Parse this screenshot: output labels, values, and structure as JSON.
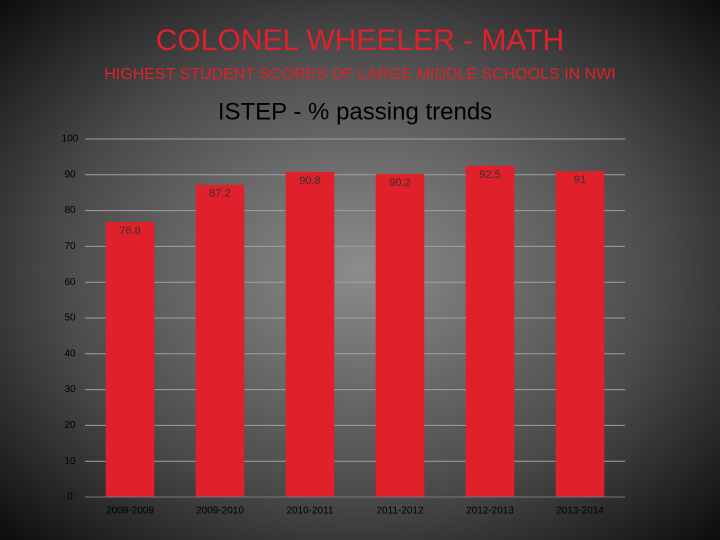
{
  "header": {
    "title": "COLONEL WHEELER - MATH",
    "subtitle": "HIGHEST STUDENT SCORES OF LARGE MIDDLE SCHOOLS IN NWI"
  },
  "chart_data": {
    "type": "bar",
    "title": "ISTEP - % passing trends",
    "categories": [
      "2008-2009",
      "2009-2010",
      "2010-2011",
      "2011-2012",
      "2012-2013",
      "2013-2014"
    ],
    "values": [
      76.8,
      87.2,
      90.8,
      90.2,
      92.5,
      91
    ],
    "color": "#e0202a",
    "ylim": [
      0,
      100
    ],
    "yticks": [
      0,
      10,
      20,
      30,
      40,
      50,
      60,
      70,
      80,
      90,
      100
    ],
    "grid": true
  }
}
